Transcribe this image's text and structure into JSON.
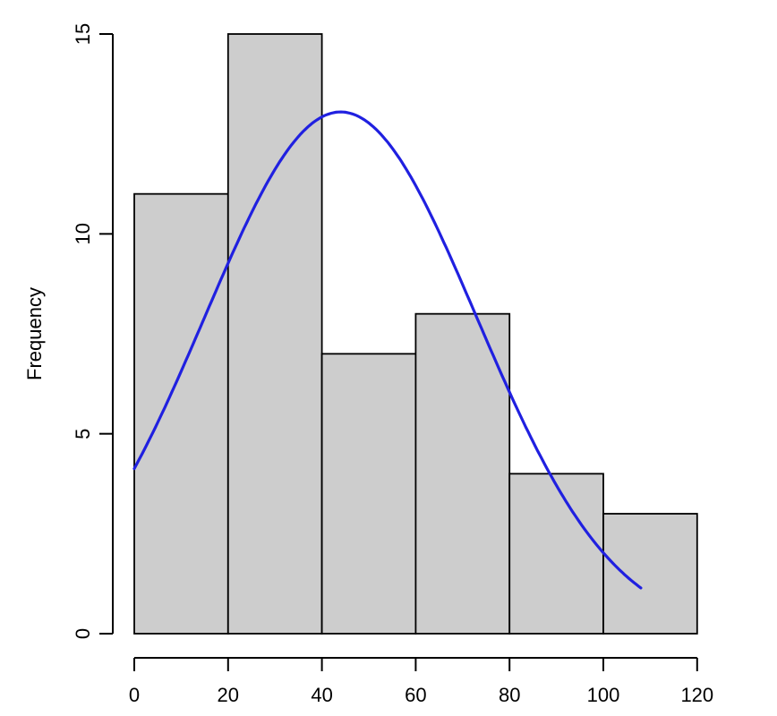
{
  "chart_data": {
    "type": "bar",
    "subtype": "histogram",
    "title": "",
    "xlabel": "",
    "ylabel": "Frequency",
    "bin_edges": [
      0,
      20,
      40,
      60,
      80,
      100,
      120
    ],
    "frequencies": [
      11,
      15,
      7,
      8,
      4,
      3
    ],
    "x_ticks": [
      0,
      20,
      40,
      60,
      80,
      100,
      120
    ],
    "y_ticks": [
      0,
      5,
      10,
      15
    ],
    "xlim": [
      0,
      120
    ],
    "ylim": [
      0,
      15
    ],
    "grid": "off",
    "legend": "none",
    "bar_fill": "#cdcdcd",
    "bar_stroke": "#000000",
    "axis_color": "#000000",
    "curve": {
      "kind": "normal-density-overlay",
      "color": "#2020e0",
      "mean": 44,
      "sd": 29,
      "peak_y": 13.05,
      "x_start": 0,
      "x_end": 108,
      "sample_points_x": [
        0,
        10,
        20,
        30,
        44,
        60,
        75,
        90,
        108
      ],
      "sample_points_y": [
        4.1,
        6.4,
        9.3,
        11.8,
        13.05,
        11.1,
        7.4,
        3.9,
        1.2
      ]
    }
  }
}
